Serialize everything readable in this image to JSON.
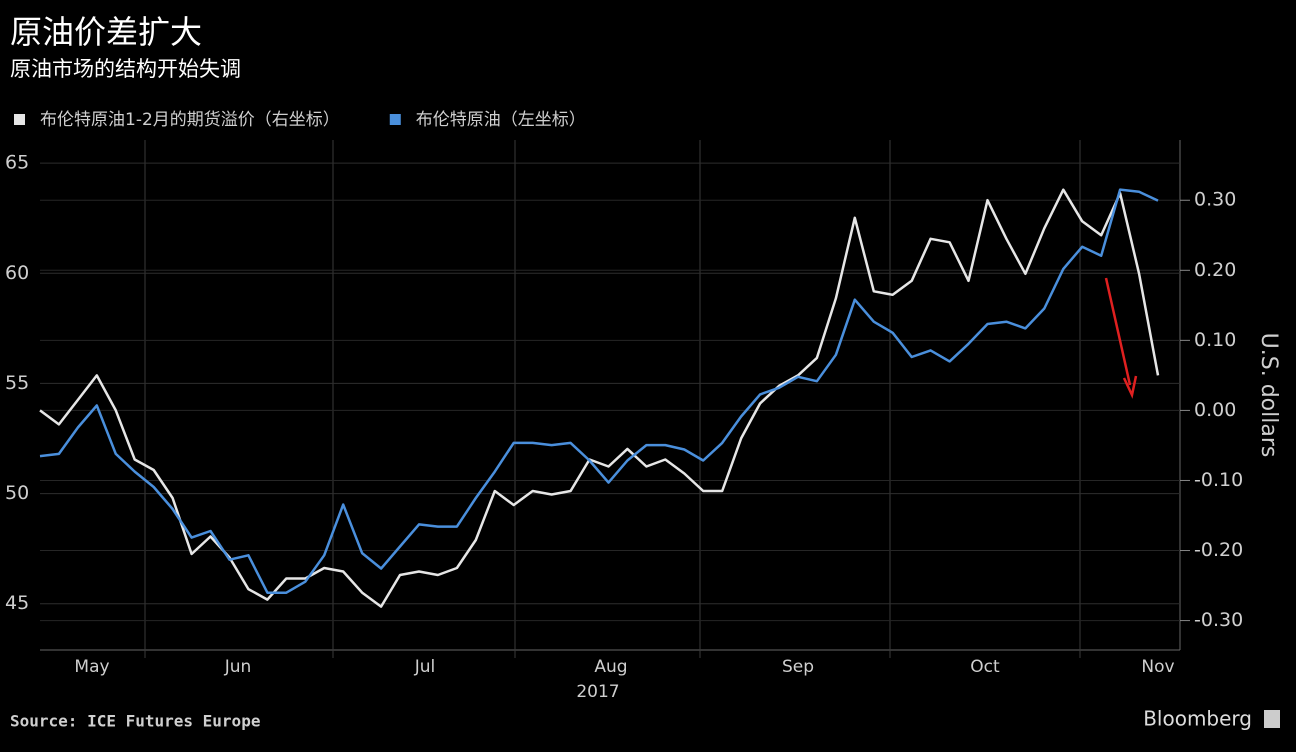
{
  "chart_data": {
    "type": "line",
    "title": "原油价差扩大",
    "subtitle": "原油市场的结构开始失调",
    "x_labels": [
      "May",
      "Jun",
      "Jul",
      "Aug",
      "Sep",
      "Oct",
      "Nov"
    ],
    "x_sublabel": "2017",
    "y2_label": "U.S. dollars",
    "source": "Source: ICE Futures Europe",
    "brand": "Bloomberg",
    "ylim": [
      42.9,
      66.05
    ],
    "yticks": [
      45,
      50,
      55,
      60,
      65
    ],
    "y2lim": [
      -0.342,
      0.386
    ],
    "y2ticks": [
      {
        "value": -0.3,
        "label": "-0.30"
      },
      {
        "value": -0.2,
        "label": "-0.20"
      },
      {
        "value": -0.1,
        "label": "-0.10"
      },
      {
        "value": 0,
        "label": "0.00"
      },
      {
        "value": 0.1,
        "label": "0.10"
      },
      {
        "value": 0.2,
        "label": "0.20"
      },
      {
        "value": 0.3,
        "label": "0.30"
      }
    ],
    "grid": true,
    "series": [
      {
        "name": "布伦特原油1-2月的期货溢价（右坐标）",
        "color": "#e6e6e6",
        "axis": "y2",
        "values": [
          0.0,
          -0.02,
          0.015,
          0.05,
          0.0,
          -0.07,
          -0.085,
          -0.125,
          -0.205,
          -0.18,
          -0.21,
          -0.255,
          -0.27,
          -0.24,
          -0.24,
          -0.225,
          -0.23,
          -0.26,
          -0.28,
          -0.235,
          -0.23,
          -0.235,
          -0.225,
          -0.185,
          -0.115,
          -0.135,
          -0.115,
          -0.12,
          -0.115,
          -0.07,
          -0.08,
          -0.055,
          -0.08,
          -0.07,
          -0.09,
          -0.115,
          -0.115,
          -0.04,
          0.01,
          0.035,
          0.05,
          0.075,
          0.16,
          0.275,
          0.17,
          0.165,
          0.185,
          0.245,
          0.24,
          0.185,
          0.3,
          0.245,
          0.195,
          0.26,
          0.315,
          0.27,
          0.25,
          0.31,
          0.195,
          0.05
        ]
      },
      {
        "name": "布伦特原油（左坐标）",
        "color": "#4a8fdc",
        "values": [
          51.7,
          51.8,
          53.0,
          54.0,
          51.8,
          51.0,
          50.3,
          49.3,
          48.0,
          48.3,
          47.0,
          47.2,
          45.5,
          45.5,
          46.0,
          47.2,
          49.5,
          47.3,
          46.6,
          47.6,
          48.6,
          48.5,
          48.5,
          49.8,
          51.0,
          52.3,
          52.3,
          52.2,
          52.3,
          51.5,
          50.5,
          51.5,
          52.2,
          52.2,
          52.0,
          51.5,
          52.3,
          53.5,
          54.5,
          54.8,
          55.3,
          55.1,
          56.3,
          58.8,
          57.8,
          57.3,
          56.2,
          56.5,
          56.0,
          56.8,
          57.7,
          57.8,
          57.5,
          58.4,
          60.2,
          61.2,
          60.8,
          63.8,
          63.7,
          63.3
        ]
      }
    ]
  }
}
